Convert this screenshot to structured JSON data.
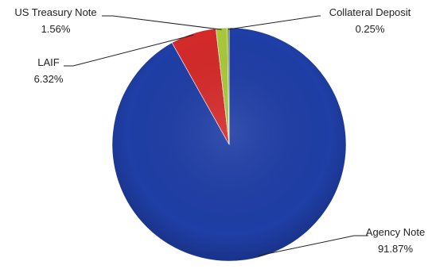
{
  "chart_data": {
    "type": "pie",
    "title": "",
    "slices": [
      {
        "label": "Agency Note",
        "value": 91.87,
        "value_label": "91.87%",
        "color": "#1f3ea6"
      },
      {
        "label": "LAIF",
        "value": 6.32,
        "value_label": "6.32%",
        "color": "#d42a2a"
      },
      {
        "label": "US Treasury Note",
        "value": 1.56,
        "value_label": "1.56%",
        "color": "#a8c83a"
      },
      {
        "label": "Collateral Deposit",
        "value": 0.25,
        "value_label": "0.25%",
        "color": "#6e8c2a"
      }
    ],
    "start": "12 o'clock",
    "direction": "clockwise",
    "legend": "none",
    "labels": "outside with leader lines"
  }
}
